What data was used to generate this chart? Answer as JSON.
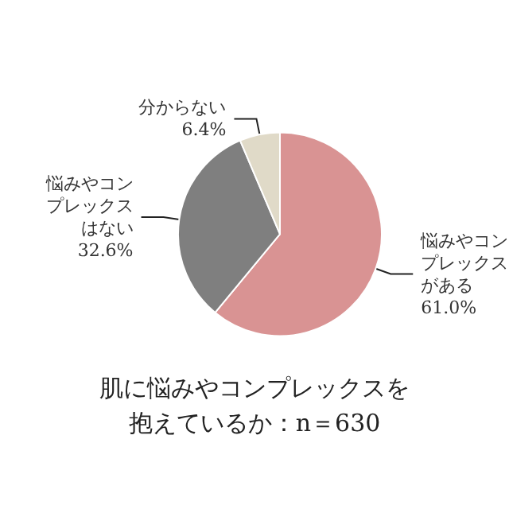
{
  "chart_data": {
    "type": "pie",
    "title": "肌に悩みやコンプレックスを抱えているか：n＝630",
    "categories": [
      "悩みやコンプレックスがある",
      "悩みやコンプレックスはない",
      "分からない"
    ],
    "values": [
      61.0,
      32.6,
      6.4
    ],
    "value_labels": [
      "61.0%",
      "32.6%",
      "6.4%"
    ],
    "colors": [
      "#d99393",
      "#7f7f7f",
      "#e0dac8"
    ],
    "legend": false
  }
}
